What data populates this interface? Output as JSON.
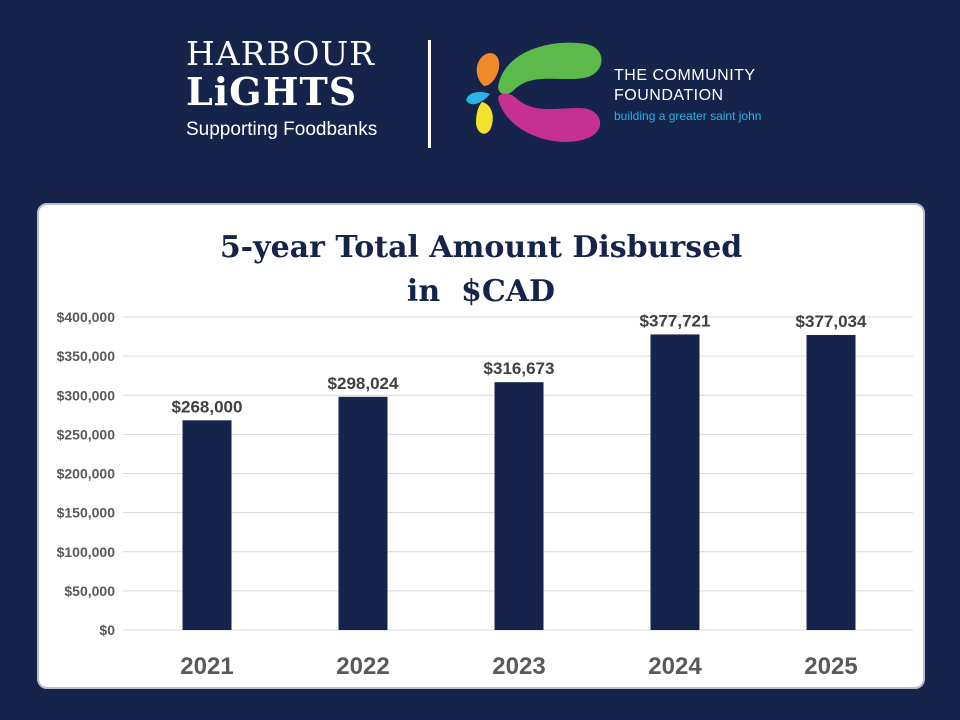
{
  "header": {
    "harbour": "HARBOUR",
    "lights": "LiGHTS",
    "supporting": "Supporting Foodbanks",
    "cf_line1": "THE COMMUNITY",
    "cf_line2": "FOUNDATION",
    "cf_tagline": "building a greater saint john"
  },
  "colors": {
    "background": "#16234a",
    "bar": "#16234a",
    "tagline": "#2bb3e6",
    "logo_green": "#5cb94a",
    "logo_magenta": "#c4318e",
    "logo_orange": "#f08a2a",
    "logo_blue": "#2bb3e6",
    "logo_yellow": "#f2e22a"
  },
  "chart_data": {
    "type": "bar",
    "title_line1": "5-year Total Amount Disbursed",
    "title_line2": "in  $CAD",
    "categories": [
      "2021",
      "2022",
      "2023",
      "2024",
      "2025"
    ],
    "values": [
      268000,
      298024,
      316673,
      377721,
      377034
    ],
    "value_labels": [
      "$268,000",
      "$298,024",
      "$316,673",
      "$377,721",
      "$377,034"
    ],
    "ylim": [
      0,
      400000
    ],
    "yticks": [
      0,
      50000,
      100000,
      150000,
      200000,
      250000,
      300000,
      350000,
      400000
    ],
    "ytick_labels": [
      "$0",
      "$50,000",
      "$100,000",
      "$150,000",
      "$200,000",
      "$250,000",
      "$300,000",
      "$350,000",
      "$400,000"
    ],
    "grid": true,
    "legend": "none"
  }
}
